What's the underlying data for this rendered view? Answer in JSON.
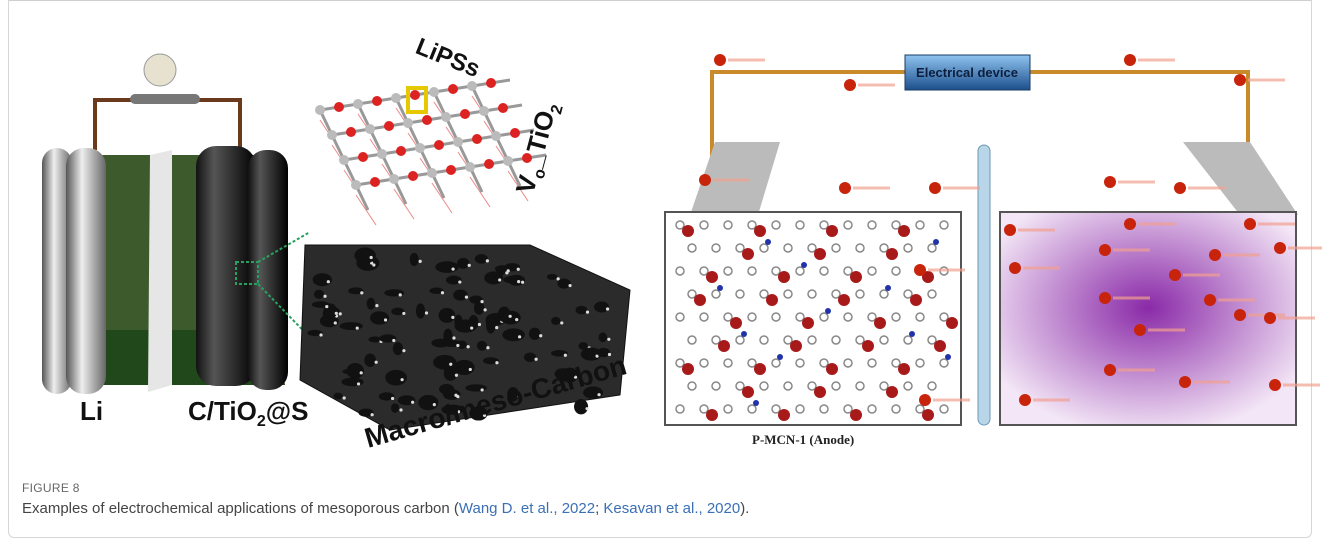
{
  "figure": {
    "panel_left": {
      "lipss": "LiPSs",
      "vo_tio2": [
        "V",
        "o",
        "_",
        "TiO",
        "2"
      ],
      "li": "Li",
      "cathode": [
        "C/TiO",
        "2",
        "@S"
      ],
      "carbon": "Macro/meso-Carbon"
    },
    "panel_right": {
      "device": "Electrical device",
      "anode": "P-MCN-1 (Anode)"
    },
    "label": "FIGURE 8",
    "caption": {
      "text": "Examples of electrochemical applications of mesoporous carbon (",
      "ref1": "Wang D. et al., 2022",
      "sep": "; ",
      "ref2": "Kesavan et al., 2020",
      "end": ")."
    }
  }
}
